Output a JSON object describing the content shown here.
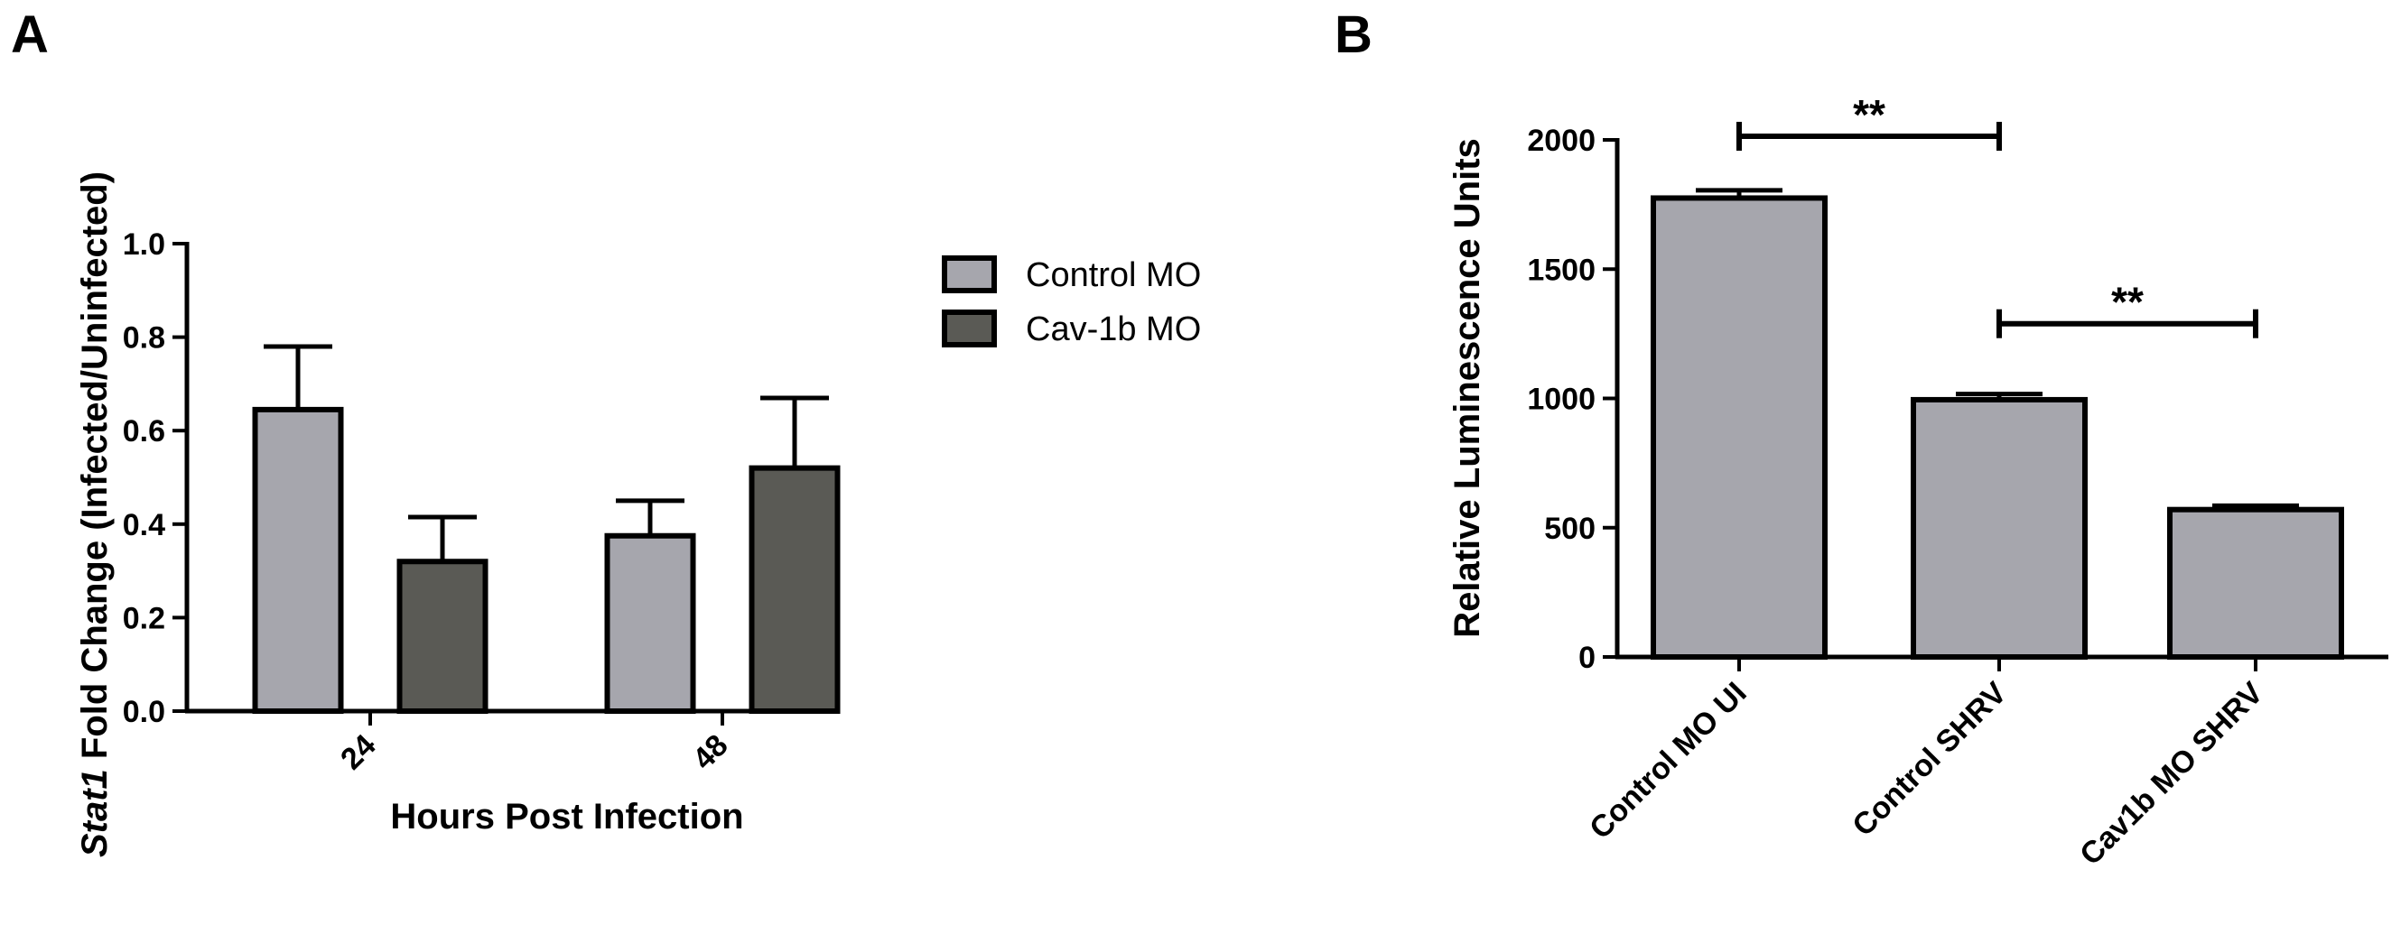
{
  "chart_data": [
    {
      "panel": "A",
      "type": "bar",
      "categories": [
        "24",
        "48"
      ],
      "xlabel": "Hours  Post  Infection",
      "ylabel_italic": "Stat1",
      "ylabel_rest": " Fold  Change  (Infected/Uninfected)",
      "ylim": [
        0,
        1.0
      ],
      "yticks": [
        "0.0",
        "0.2",
        "0.4",
        "0.6",
        "0.8",
        "1.0"
      ],
      "legend_position": "right",
      "series": [
        {
          "name": "Control MO",
          "color": "#a6a6ad",
          "values": [
            0.645,
            0.375
          ],
          "errors": [
            0.135,
            0.075
          ]
        },
        {
          "name": "Cav-1b MO",
          "color": "#5a5a55",
          "values": [
            0.32,
            0.52
          ],
          "errors": [
            0.095,
            0.15
          ]
        }
      ]
    },
    {
      "panel": "B",
      "type": "bar",
      "categories": [
        "Control MO UI",
        "Control SHRV",
        "Cav1b MO SHRV"
      ],
      "xlabel": "",
      "ylabel": "Relative Luminescence Units",
      "ylim": [
        0,
        2000
      ],
      "yticks": [
        "0",
        "500",
        "1000",
        "1500",
        "2000"
      ],
      "series": [
        {
          "color": "#a6a6ad",
          "values": [
            1775,
            995,
            570
          ],
          "errors": [
            30,
            22,
            15
          ]
        }
      ],
      "annotations": [
        {
          "from": 0,
          "to": 1,
          "value": 2000,
          "label": "**"
        },
        {
          "from": 1,
          "to": 2,
          "value": 1275,
          "label": "**"
        }
      ]
    }
  ]
}
